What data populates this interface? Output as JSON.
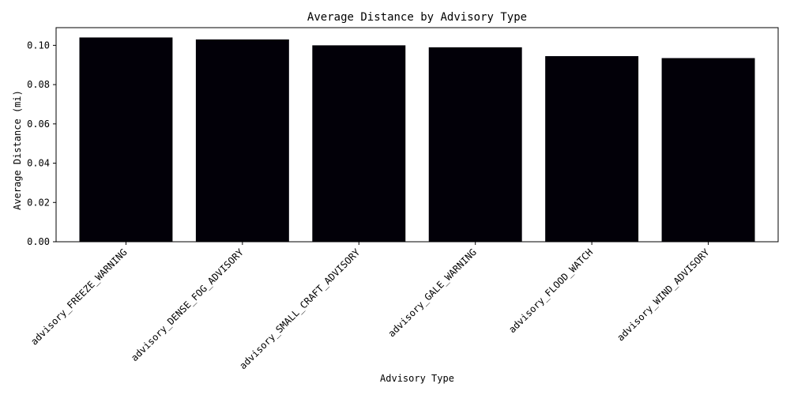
{
  "chart_data": {
    "type": "bar",
    "title": "Average Distance by Advisory Type",
    "xlabel": "Advisory Type",
    "ylabel": "Average Distance (mi)",
    "categories": [
      "advisory_FREEZE_WARNING",
      "advisory_DENSE_FOG_ADVISORY",
      "advisory_SMALL_CRAFT_ADVISORY",
      "advisory_GALE_WARNING",
      "advisory_FLOOD_WATCH",
      "advisory_WIND_ADVISORY"
    ],
    "values": [
      0.104,
      0.103,
      0.1,
      0.099,
      0.0945,
      0.0935
    ],
    "ylim": [
      0,
      0.109
    ],
    "yticks": [
      "0.00",
      "0.02",
      "0.04",
      "0.06",
      "0.08",
      "0.10"
    ],
    "bar_color": "#020008",
    "grid": false,
    "legend": "none"
  }
}
